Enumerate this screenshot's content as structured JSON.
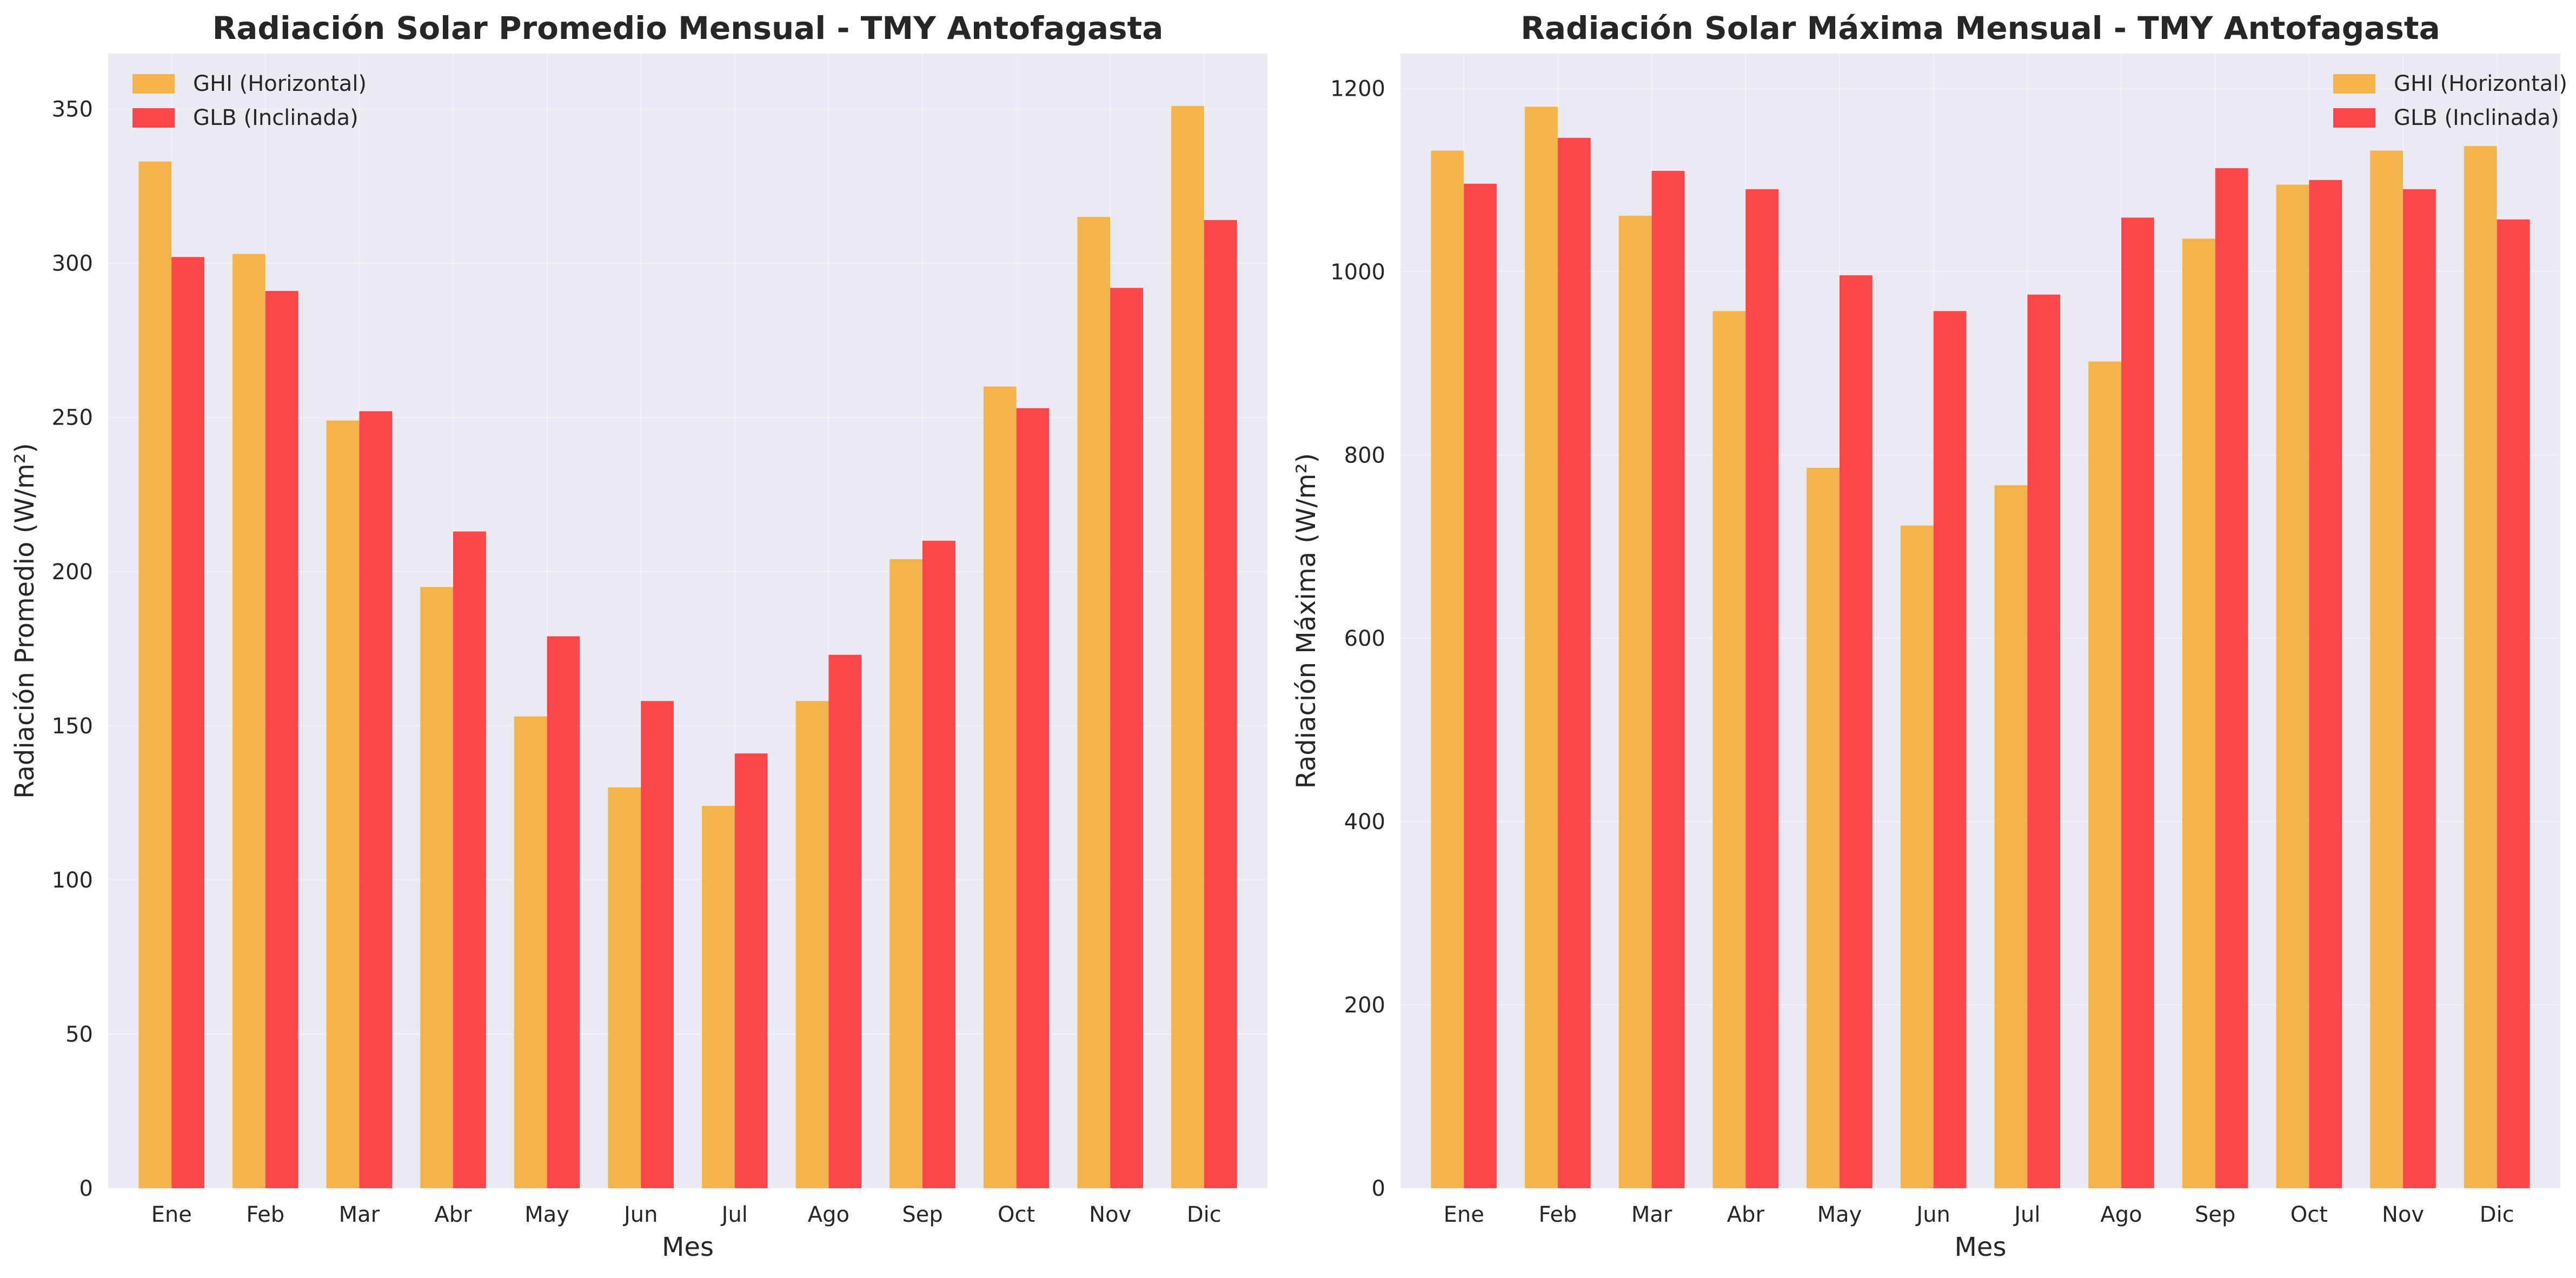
{
  "colors": {
    "ghi": "#f5a623",
    "glb": "#ff1e1e"
  },
  "chart_data": [
    {
      "type": "bar",
      "title": "Radiación Solar Promedio Mensual - TMY Antofagasta",
      "xlabel": "Mes",
      "ylabel": "Radiación Promedio (W/m²)",
      "categories": [
        "Ene",
        "Feb",
        "Mar",
        "Abr",
        "May",
        "Jun",
        "Jul",
        "Ago",
        "Sep",
        "Oct",
        "Nov",
        "Dic"
      ],
      "ylim": [
        0,
        368
      ],
      "yticks": [
        0,
        50,
        100,
        150,
        200,
        250,
        300,
        350
      ],
      "grid": true,
      "legend_position": "top-left",
      "series": [
        {
          "name": "GHI (Horizontal)",
          "color": "#f5a623",
          "values": [
            333,
            303,
            249,
            195,
            153,
            130,
            124,
            158,
            204,
            260,
            315,
            351
          ]
        },
        {
          "name": "GLB (Inclinada)",
          "color": "#ff1e1e",
          "values": [
            302,
            291,
            252,
            213,
            179,
            158,
            141,
            173,
            210,
            253,
            292,
            314
          ]
        }
      ]
    },
    {
      "type": "bar",
      "title": "Radiación Solar Máxima Mensual - TMY Antofagasta",
      "xlabel": "Mes",
      "ylabel": "Radiación Máxima (W/m²)",
      "categories": [
        "Ene",
        "Feb",
        "Mar",
        "Abr",
        "May",
        "Jun",
        "Jul",
        "Ago",
        "Sep",
        "Oct",
        "Nov",
        "Dic"
      ],
      "ylim": [
        0,
        1238
      ],
      "yticks": [
        0,
        200,
        400,
        600,
        800,
        1000,
        1200
      ],
      "grid": true,
      "legend_position": "top-right",
      "series": [
        {
          "name": "GHI (Horizontal)",
          "color": "#f5a623",
          "values": [
            1132,
            1180,
            1061,
            957,
            786,
            723,
            767,
            902,
            1036,
            1095,
            1132,
            1137
          ]
        },
        {
          "name": "GLB (Inclinada)",
          "color": "#ff1e1e",
          "values": [
            1096,
            1146,
            1110,
            1090,
            996,
            957,
            975,
            1059,
            1113,
            1100,
            1090,
            1057
          ]
        }
      ]
    }
  ]
}
